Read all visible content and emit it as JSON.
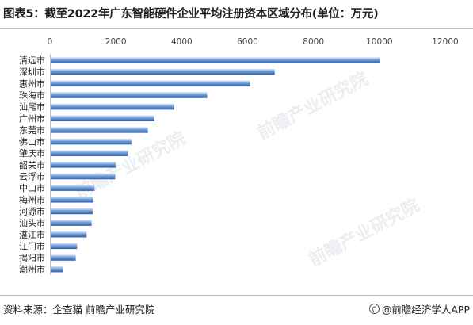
{
  "title": "图表5：截至2022年广东智能硬件企业平均注册资本区域分布(单位：万元)",
  "source": "资料来源：企查猫 前瞻产业研究院",
  "brand": "@前瞻经济学人APP",
  "watermark": "前瞻产业研究院",
  "colors": {
    "bar_dark": "#2f5fa8",
    "bar_light": "#dce8f7"
  },
  "chart_data": {
    "type": "bar",
    "orientation": "horizontal",
    "categories": [
      "清远市",
      "深圳市",
      "惠州市",
      "珠海市",
      "汕尾市",
      "广州市",
      "东莞市",
      "佛山市",
      "肇庆市",
      "韶关市",
      "云浮市",
      "中山市",
      "梅州市",
      "河源市",
      "汕头市",
      "湛江市",
      "江门市",
      "揭阳市",
      "潮州市"
    ],
    "values": [
      10000,
      6800,
      6050,
      4750,
      3750,
      3150,
      2950,
      2450,
      2350,
      1980,
      1960,
      1330,
      1300,
      1280,
      1240,
      1090,
      800,
      760,
      380
    ],
    "xlim": [
      0,
      12000
    ],
    "xticks": [
      0,
      2000,
      4000,
      6000,
      8000,
      10000,
      12000
    ],
    "xaxis_position": "top",
    "grid": false,
    "legend": "none"
  }
}
